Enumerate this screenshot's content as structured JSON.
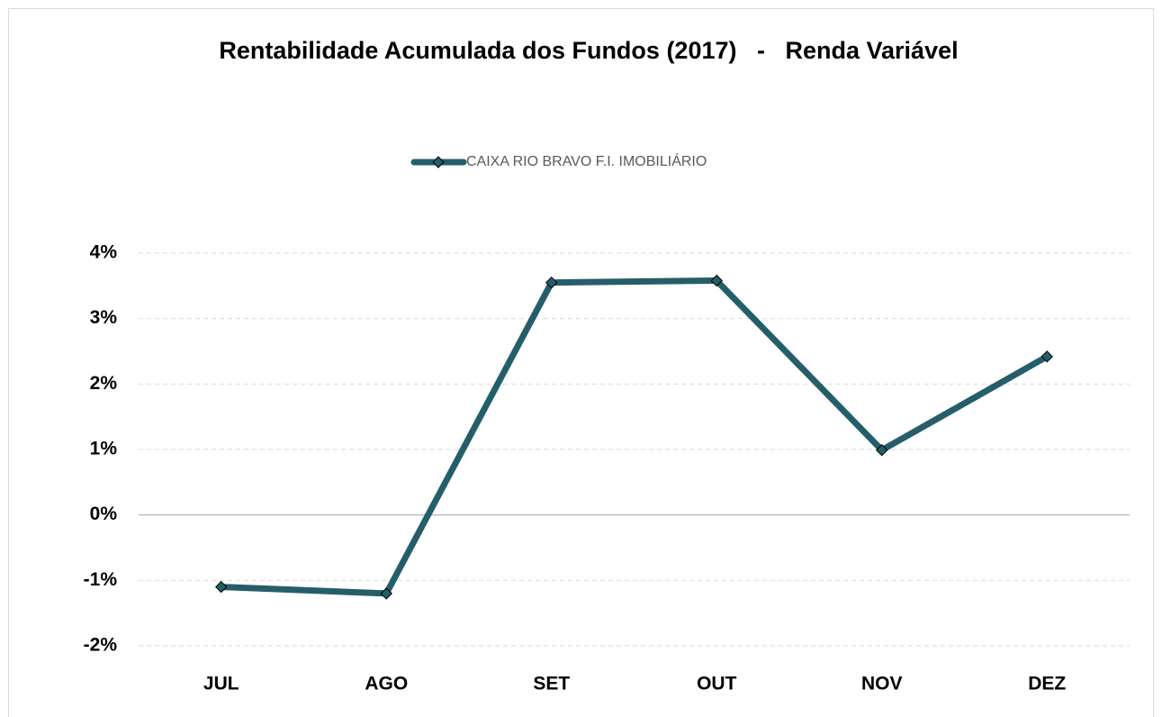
{
  "chart_data": {
    "type": "line",
    "title": "Rentabilidade Acumulada dos Fundos (2017)   -   Renda Variável",
    "categories": [
      "JUL",
      "AGO",
      "SET",
      "OUT",
      "NOV",
      "DEZ"
    ],
    "series": [
      {
        "name": "CAIXA RIO BRAVO F.I. IMOBILIÁRIO",
        "color": "#255e6b",
        "values": [
          -1.1,
          -1.2,
          3.55,
          3.58,
          0.99,
          2.42
        ]
      }
    ],
    "ylim": [
      -2,
      4
    ],
    "yticks": [
      {
        "value": -2,
        "label": "-2%"
      },
      {
        "value": -1,
        "label": "-1%"
      },
      {
        "value": 0,
        "label": "0%"
      },
      {
        "value": 1,
        "label": "1%"
      },
      {
        "value": 2,
        "label": "2%"
      },
      {
        "value": 3,
        "label": "3%"
      },
      {
        "value": 4,
        "label": "4%"
      }
    ],
    "grid": true,
    "legend": "top"
  }
}
